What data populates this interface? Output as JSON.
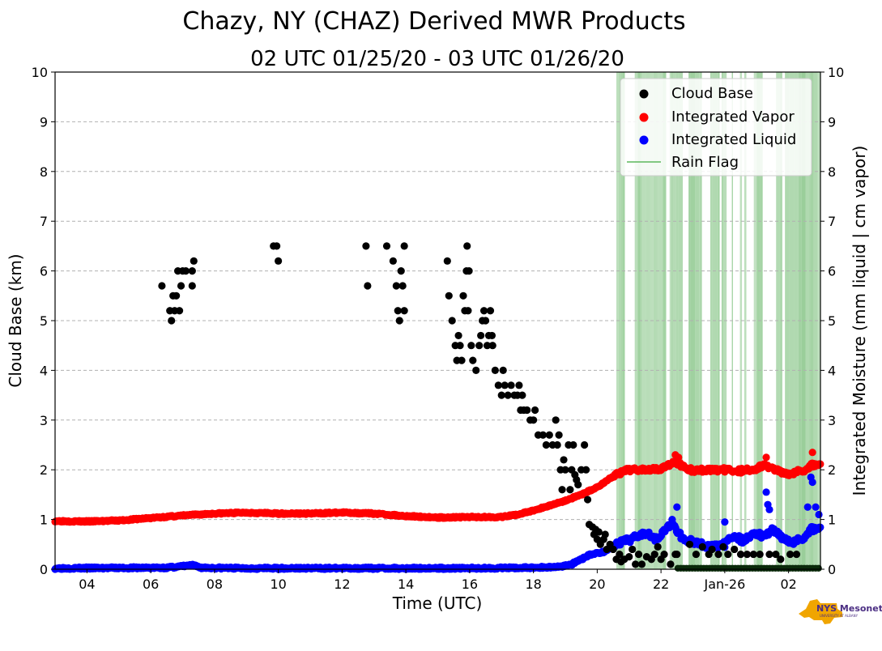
{
  "chart_data": {
    "type": "scatter",
    "title": "Chazy, NY (CHAZ) Derived MWR Products",
    "subtitle": "02 UTC 01/25/20 - 03 UTC 01/26/20",
    "xlabel": "Time (UTC)",
    "ylabel_left": "Cloud Base (km)",
    "ylabel_right": "Integrated Moisture (mm liquid | cm vapor)",
    "xlim_hours": [
      3,
      27
    ],
    "ylim": [
      0,
      10
    ],
    "grid": "horizontal dashed",
    "legend_position": "top-right",
    "x_ticks": [
      {
        "hour": 4,
        "label": "04"
      },
      {
        "hour": 6,
        "label": "06"
      },
      {
        "hour": 8,
        "label": "08"
      },
      {
        "hour": 10,
        "label": "10"
      },
      {
        "hour": 12,
        "label": "12"
      },
      {
        "hour": 14,
        "label": "14"
      },
      {
        "hour": 16,
        "label": "16"
      },
      {
        "hour": 18,
        "label": "18"
      },
      {
        "hour": 20,
        "label": "20"
      },
      {
        "hour": 22,
        "label": "22"
      },
      {
        "hour": 24,
        "label": "Jan-26"
      },
      {
        "hour": 26,
        "label": "02"
      }
    ],
    "y_ticks": [
      "0",
      "1",
      "2",
      "3",
      "4",
      "5",
      "6",
      "7",
      "8",
      "9",
      "10"
    ],
    "legend": [
      {
        "label": "Cloud Base",
        "color": "#000000",
        "kind": "marker"
      },
      {
        "label": "Integrated Vapor",
        "color": "#ff0000",
        "kind": "marker"
      },
      {
        "label": "Integrated Liquid",
        "color": "#0000ff",
        "kind": "marker"
      },
      {
        "label": "Rain Flag",
        "color": "#5cb85c",
        "kind": "line"
      }
    ],
    "rain_flag_span_hours": [
      20.6,
      27
    ],
    "series": [
      {
        "name": "Cloud Base",
        "color": "#000000",
        "points": [
          [
            6.35,
            5.7
          ],
          [
            6.6,
            5.2
          ],
          [
            6.65,
            5.0
          ],
          [
            6.7,
            5.5
          ],
          [
            6.75,
            5.2
          ],
          [
            6.8,
            5.5
          ],
          [
            6.85,
            6.0
          ],
          [
            6.9,
            5.2
          ],
          [
            6.95,
            5.7
          ],
          [
            7.0,
            6.0
          ],
          [
            7.1,
            6.0
          ],
          [
            7.3,
            5.7
          ],
          [
            7.3,
            6.0
          ],
          [
            7.35,
            6.2
          ],
          [
            9.85,
            6.5
          ],
          [
            9.95,
            6.5
          ],
          [
            10.0,
            6.2
          ],
          [
            12.75,
            6.5
          ],
          [
            12.8,
            5.7
          ],
          [
            13.4,
            6.5
          ],
          [
            13.6,
            6.2
          ],
          [
            13.7,
            5.7
          ],
          [
            13.75,
            5.2
          ],
          [
            13.8,
            5.0
          ],
          [
            13.85,
            6.0
          ],
          [
            13.9,
            5.7
          ],
          [
            13.95,
            5.2
          ],
          [
            13.95,
            6.5
          ],
          [
            15.3,
            6.2
          ],
          [
            15.35,
            5.5
          ],
          [
            15.45,
            5.0
          ],
          [
            15.55,
            4.5
          ],
          [
            15.6,
            4.2
          ],
          [
            15.65,
            4.7
          ],
          [
            15.7,
            4.5
          ],
          [
            15.75,
            4.2
          ],
          [
            15.8,
            5.5
          ],
          [
            15.85,
            5.2
          ],
          [
            15.9,
            6.0
          ],
          [
            15.92,
            6.5
          ],
          [
            15.95,
            5.2
          ],
          [
            15.98,
            6.0
          ],
          [
            16.05,
            4.5
          ],
          [
            16.1,
            4.2
          ],
          [
            16.2,
            4.0
          ],
          [
            16.3,
            4.5
          ],
          [
            16.35,
            4.7
          ],
          [
            16.4,
            5.0
          ],
          [
            16.45,
            5.2
          ],
          [
            16.5,
            5.0
          ],
          [
            16.55,
            4.5
          ],
          [
            16.6,
            4.7
          ],
          [
            16.65,
            5.2
          ],
          [
            16.7,
            4.7
          ],
          [
            16.72,
            4.5
          ],
          [
            16.8,
            4.0
          ],
          [
            16.9,
            3.7
          ],
          [
            17.0,
            3.5
          ],
          [
            17.05,
            4.0
          ],
          [
            17.1,
            3.7
          ],
          [
            17.2,
            3.5
          ],
          [
            17.3,
            3.7
          ],
          [
            17.4,
            3.5
          ],
          [
            17.5,
            3.5
          ],
          [
            17.55,
            3.7
          ],
          [
            17.6,
            3.2
          ],
          [
            17.65,
            3.5
          ],
          [
            17.7,
            3.2
          ],
          [
            17.8,
            3.2
          ],
          [
            17.9,
            3.0
          ],
          [
            18.0,
            3.0
          ],
          [
            18.05,
            3.2
          ],
          [
            18.15,
            2.7
          ],
          [
            18.3,
            2.7
          ],
          [
            18.4,
            2.5
          ],
          [
            18.5,
            2.7
          ],
          [
            18.6,
            2.5
          ],
          [
            18.7,
            3.0
          ],
          [
            18.75,
            2.5
          ],
          [
            18.8,
            2.7
          ],
          [
            18.85,
            2.0
          ],
          [
            18.9,
            1.6
          ],
          [
            18.95,
            2.2
          ],
          [
            19.0,
            2.0
          ],
          [
            19.1,
            2.5
          ],
          [
            19.15,
            1.6
          ],
          [
            19.2,
            2.0
          ],
          [
            19.25,
            2.5
          ],
          [
            19.3,
            1.9
          ],
          [
            19.35,
            1.8
          ],
          [
            19.4,
            1.7
          ],
          [
            19.5,
            2.0
          ],
          [
            19.6,
            2.5
          ],
          [
            19.65,
            2.0
          ],
          [
            19.7,
            1.4
          ],
          [
            19.75,
            0.9
          ],
          [
            19.85,
            0.85
          ],
          [
            19.9,
            0.7
          ],
          [
            19.95,
            0.8
          ],
          [
            20.0,
            0.6
          ],
          [
            20.05,
            0.75
          ],
          [
            20.1,
            0.5
          ],
          [
            20.2,
            0.6
          ],
          [
            20.25,
            0.7
          ],
          [
            20.3,
            0.4
          ],
          [
            20.4,
            0.5
          ],
          [
            20.5,
            0.4
          ],
          [
            20.6,
            0.2
          ],
          [
            20.7,
            0.3
          ],
          [
            20.75,
            0.15
          ],
          [
            20.85,
            0.2
          ],
          [
            21.0,
            0.25
          ],
          [
            21.1,
            0.4
          ],
          [
            21.2,
            0.1
          ],
          [
            21.3,
            0.3
          ],
          [
            21.4,
            0.1
          ],
          [
            21.55,
            0.25
          ],
          [
            21.7,
            0.2
          ],
          [
            21.8,
            0.3
          ],
          [
            21.9,
            0.45
          ],
          [
            22.0,
            0.2
          ],
          [
            22.1,
            0.3
          ],
          [
            22.3,
            0.1
          ],
          [
            22.45,
            0.3
          ],
          [
            22.5,
            0.3
          ],
          [
            22.9,
            0.5
          ],
          [
            23.1,
            0.3
          ],
          [
            23.3,
            0.45
          ],
          [
            23.5,
            0.3
          ],
          [
            23.6,
            0.4
          ],
          [
            23.8,
            0.3
          ],
          [
            23.95,
            0.45
          ],
          [
            24.1,
            0.3
          ],
          [
            24.3,
            0.4
          ],
          [
            24.5,
            0.3
          ],
          [
            24.7,
            0.3
          ],
          [
            24.9,
            0.3
          ],
          [
            25.1,
            0.3
          ],
          [
            25.4,
            0.3
          ],
          [
            25.6,
            0.3
          ],
          [
            25.75,
            0.2
          ],
          [
            26.05,
            0.3
          ],
          [
            26.25,
            0.3
          ]
        ]
      },
      {
        "name": "Integrated Vapor",
        "color": "#ff0000",
        "curve": [
          [
            3.0,
            0.97
          ],
          [
            4.0,
            0.96
          ],
          [
            5.0,
            0.98
          ],
          [
            6.0,
            1.03
          ],
          [
            7.0,
            1.08
          ],
          [
            8.0,
            1.12
          ],
          [
            9.0,
            1.14
          ],
          [
            10.0,
            1.12
          ],
          [
            11.0,
            1.12
          ],
          [
            12.0,
            1.14
          ],
          [
            13.0,
            1.12
          ],
          [
            14.0,
            1.07
          ],
          [
            15.0,
            1.04
          ],
          [
            16.0,
            1.05
          ],
          [
            17.0,
            1.05
          ],
          [
            17.5,
            1.1
          ],
          [
            18.0,
            1.18
          ],
          [
            18.5,
            1.28
          ],
          [
            19.0,
            1.38
          ],
          [
            19.5,
            1.5
          ],
          [
            20.0,
            1.65
          ],
          [
            20.5,
            1.87
          ],
          [
            21.0,
            2.0
          ],
          [
            21.5,
            2.02
          ],
          [
            22.0,
            2.02
          ],
          [
            22.25,
            2.1
          ],
          [
            22.5,
            2.15
          ],
          [
            22.75,
            2.05
          ],
          [
            23.0,
            1.98
          ],
          [
            23.5,
            2.0
          ],
          [
            24.0,
            2.0
          ],
          [
            24.5,
            1.98
          ],
          [
            25.0,
            2.02
          ],
          [
            25.25,
            2.1
          ],
          [
            25.5,
            2.02
          ],
          [
            26.0,
            1.92
          ],
          [
            26.5,
            2.0
          ],
          [
            26.75,
            2.1
          ],
          [
            27.0,
            2.12
          ]
        ],
        "spikes": [
          [
            22.45,
            2.3
          ],
          [
            22.55,
            2.25
          ],
          [
            25.3,
            2.25
          ],
          [
            26.75,
            2.35
          ]
        ]
      },
      {
        "name": "Integrated Liquid",
        "color": "#0000ff",
        "curve": [
          [
            3.0,
            0.02
          ],
          [
            6.5,
            0.03
          ],
          [
            7.0,
            0.06
          ],
          [
            7.3,
            0.08
          ],
          [
            7.6,
            0.03
          ],
          [
            9.0,
            0.02
          ],
          [
            14.0,
            0.02
          ],
          [
            16.0,
            0.02
          ],
          [
            18.0,
            0.03
          ],
          [
            18.8,
            0.05
          ],
          [
            19.2,
            0.1
          ],
          [
            19.5,
            0.2
          ],
          [
            19.8,
            0.3
          ],
          [
            20.2,
            0.35
          ],
          [
            20.5,
            0.45
          ],
          [
            20.8,
            0.55
          ],
          [
            21.0,
            0.58
          ],
          [
            21.3,
            0.7
          ],
          [
            21.6,
            0.75
          ],
          [
            21.8,
            0.6
          ],
          [
            22.0,
            0.7
          ],
          [
            22.3,
            0.9
          ],
          [
            22.5,
            0.8
          ],
          [
            22.7,
            0.6
          ],
          [
            23.0,
            0.55
          ],
          [
            23.5,
            0.45
          ],
          [
            24.0,
            0.5
          ],
          [
            24.3,
            0.7
          ],
          [
            24.6,
            0.55
          ],
          [
            24.9,
            0.75
          ],
          [
            25.2,
            0.65
          ],
          [
            25.5,
            0.8
          ],
          [
            25.8,
            0.65
          ],
          [
            26.1,
            0.55
          ],
          [
            26.4,
            0.6
          ],
          [
            26.7,
            0.8
          ],
          [
            27.0,
            0.85
          ]
        ],
        "spikes": [
          [
            22.5,
            1.25
          ],
          [
            22.35,
            1.0
          ],
          [
            24.0,
            0.95
          ],
          [
            25.3,
            1.55
          ],
          [
            25.35,
            1.3
          ],
          [
            25.4,
            1.2
          ],
          [
            26.6,
            1.25
          ],
          [
            26.7,
            1.85
          ],
          [
            26.75,
            1.75
          ],
          [
            26.85,
            1.25
          ],
          [
            26.95,
            1.1
          ]
        ]
      }
    ]
  },
  "logo": {
    "text": "NYS Mesonet",
    "subtext": "UNIVERSITY AT ALBANY"
  }
}
